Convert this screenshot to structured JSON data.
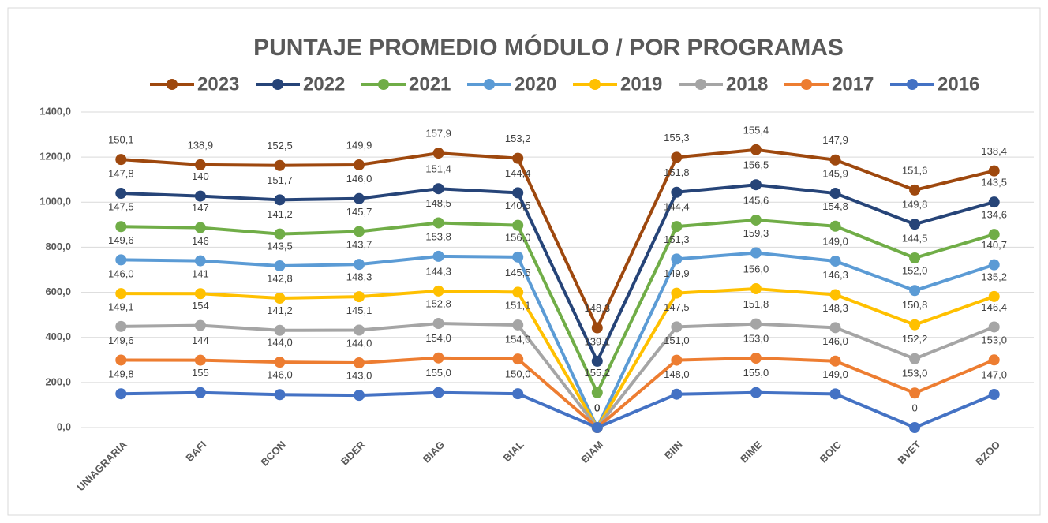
{
  "chart_data": {
    "type": "line",
    "stacked": true,
    "title": "PUNTAJE PROMEDIO MÓDULO / POR PROGRAMAS",
    "categories": [
      "UNIAGRARIA",
      "BAFI",
      "BCON",
      "BDER",
      "BIAG",
      "BIAL",
      "BIAM",
      "BIIN",
      "BIME",
      "BOIC",
      "BVET",
      "BZOO"
    ],
    "ylim": [
      0,
      1400
    ],
    "yticks": [
      {
        "value": 0,
        "label": "0,0"
      },
      {
        "value": 200,
        "label": "200,0"
      },
      {
        "value": 400,
        "label": "400,0"
      },
      {
        "value": 600,
        "label": "600,0"
      },
      {
        "value": 800,
        "label": "800,0"
      },
      {
        "value": 1000,
        "label": "1000,0"
      },
      {
        "value": 1200,
        "label": "1200,0"
      },
      {
        "value": 1400,
        "label": "1400,0"
      }
    ],
    "grid": true,
    "legend": "top",
    "series": [
      {
        "name": "2023",
        "color": "#9e480e",
        "values": [
          150.1,
          138.9,
          152.5,
          149.9,
          157.9,
          153.2,
          148.3,
          155.3,
          155.4,
          147.9,
          151.6,
          138.4
        ],
        "value_labels": [
          "150,1",
          "138,9",
          "152,5",
          "149,9",
          "157,9",
          "153,2",
          "148,3",
          "155,3",
          "155,4",
          "147,9",
          "151,6",
          "138,4"
        ]
      },
      {
        "name": "2022",
        "color": "#264478",
        "values": [
          147.8,
          140,
          151.7,
          146.0,
          151.4,
          144.4,
          139.1,
          151.8,
          156.5,
          145.9,
          149.8,
          143.5
        ],
        "value_labels": [
          "147,8",
          "140",
          "151,7",
          "146,0",
          "151,4",
          "144,4",
          "139,1",
          "151,8",
          "156,5",
          "145,9",
          "149,8",
          "143,5"
        ]
      },
      {
        "name": "2021",
        "color": "#70ad47",
        "values": [
          147.5,
          147,
          141.2,
          145.7,
          148.5,
          140.5,
          155.2,
          144.4,
          145.6,
          154.8,
          144.5,
          134.6
        ],
        "value_labels": [
          "147,5",
          "147",
          "141,2",
          "145,7",
          "148,5",
          "140,5",
          "155,2",
          "144,4",
          "145,6",
          "154,8",
          "144,5",
          "134,6"
        ]
      },
      {
        "name": "2020",
        "color": "#5b9bd5",
        "values": [
          149.6,
          146,
          143.5,
          143.7,
          153.8,
          156.0,
          0,
          151.3,
          159.3,
          149.0,
          152.0,
          140.7
        ],
        "value_labels": [
          "149,6",
          "146",
          "143,5",
          "143,7",
          "153,8",
          "156,0",
          "0",
          "151,3",
          "159,3",
          "149,0",
          "152,0",
          "140,7"
        ]
      },
      {
        "name": "2019",
        "color": "#ffc000",
        "values": [
          146.0,
          141,
          142.8,
          148.3,
          144.3,
          145.5,
          0,
          149.9,
          156.0,
          146.3,
          150.8,
          135.2
        ],
        "value_labels": [
          "146,0",
          "141",
          "142,8",
          "148,3",
          "144,3",
          "145,5",
          "0",
          "149,9",
          "156,0",
          "146,3",
          "150,8",
          "135,2"
        ]
      },
      {
        "name": "2018",
        "color": "#a5a5a5",
        "values": [
          149.1,
          154,
          141.2,
          145.1,
          152.8,
          151.1,
          0,
          147.5,
          151.8,
          148.3,
          152.2,
          146.4
        ],
        "value_labels": [
          "149,1",
          "154",
          "141,2",
          "145,1",
          "152,8",
          "151,1",
          "0",
          "147,5",
          "151,8",
          "148,3",
          "152,2",
          "146,4"
        ]
      },
      {
        "name": "2017",
        "color": "#ed7d31",
        "values": [
          149.6,
          144,
          144.0,
          144.0,
          154.0,
          154.0,
          0,
          151.0,
          153.0,
          146.0,
          153.0,
          153.0
        ],
        "value_labels": [
          "149,6",
          "144",
          "144,0",
          "144,0",
          "154,0",
          "154,0",
          "0",
          "151,0",
          "153,0",
          "146,0",
          "153,0",
          "153,0"
        ]
      },
      {
        "name": "2016",
        "color": "#4472c4",
        "values": [
          149.8,
          155,
          146.0,
          143.0,
          155.0,
          150.0,
          0,
          148.0,
          155.0,
          149.0,
          0,
          147.0
        ],
        "value_labels": [
          "149,8",
          "155",
          "146,0",
          "143,0",
          "155,0",
          "150,0",
          "0",
          "148,0",
          "155,0",
          "149,0",
          "0",
          "147,0"
        ]
      }
    ]
  }
}
